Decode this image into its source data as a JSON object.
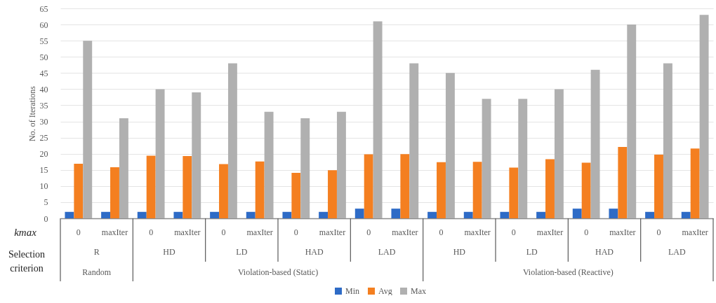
{
  "chart_data": {
    "type": "bar",
    "ylabel": "No. of Iterations",
    "categories": [
      "0",
      "maxIter",
      "0",
      "maxIter",
      "0",
      "maxIter",
      "0",
      "maxIter",
      "0",
      "maxIter",
      "0",
      "maxIter",
      "0",
      "maxIter",
      "0",
      "maxIter",
      "0",
      "maxIter"
    ],
    "series": [
      {
        "name": "Min",
        "color": "#2e6bc6",
        "values": [
          2,
          2,
          2,
          2,
          2,
          2,
          2,
          2,
          3,
          3,
          2,
          2,
          2,
          2,
          3,
          3,
          2,
          2
        ]
      },
      {
        "name": "Avg",
        "color": "#f47f20",
        "values": [
          16.9,
          15.8,
          19.4,
          19.3,
          16.8,
          17.6,
          14.1,
          14.9,
          19.8,
          19.9,
          17.4,
          17.5,
          15.7,
          18.3,
          17.2,
          22.1,
          19.7,
          21.6
        ]
      },
      {
        "name": "Max",
        "color": "#b0b0b0",
        "values": [
          55,
          31,
          40,
          39,
          48,
          33,
          31,
          33,
          61,
          48,
          45,
          37,
          37,
          40,
          46,
          60,
          48,
          63
        ]
      }
    ],
    "ylim": [
      0,
      65
    ],
    "yticks": [
      0,
      5,
      10,
      15,
      20,
      25,
      30,
      35,
      40,
      45,
      50,
      55,
      60,
      65
    ],
    "grid": "y",
    "legend": "bottom",
    "annotations": [
      "kmax",
      "Selection criterion",
      "R",
      "HD",
      "LD",
      "HAD",
      "LAD",
      "HD",
      "LD",
      "HAD",
      "LAD",
      "Random",
      "Violation-based (Static)",
      "Violation-based (Reactive)"
    ]
  }
}
